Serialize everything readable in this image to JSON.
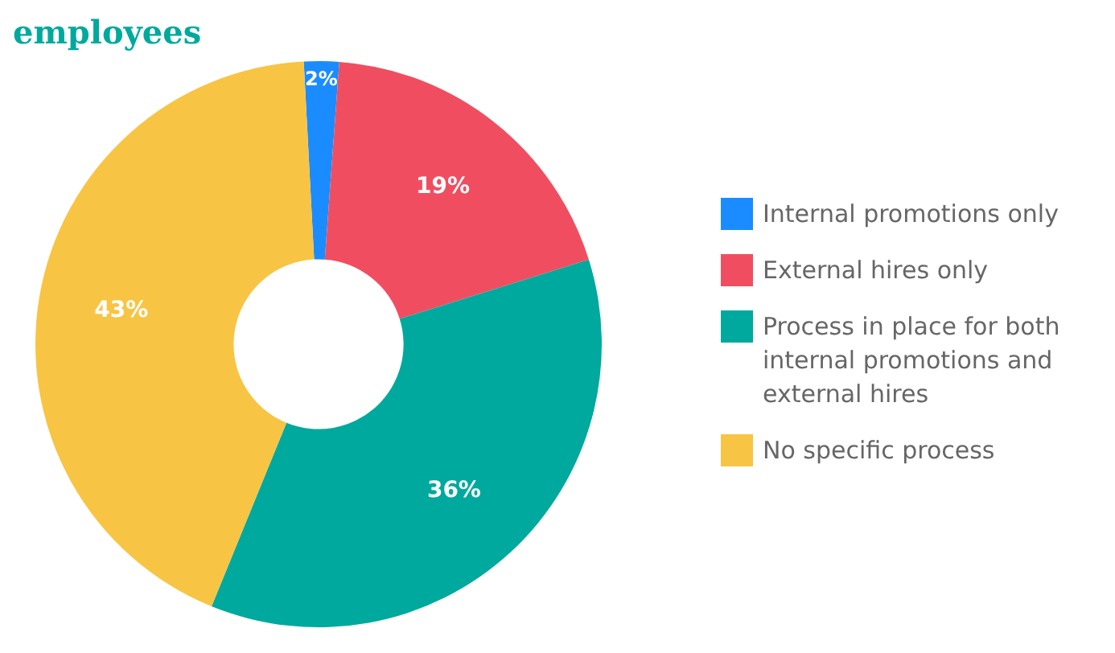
{
  "chart_data": {
    "type": "donut",
    "title": "employees",
    "categories": [
      "Internal promotions only",
      "External hires only",
      "Process in place for both internal promotions and external hires",
      "No specific process"
    ],
    "values": [
      2,
      19,
      36,
      43
    ],
    "colors": [
      "#1a8cff",
      "#f04e60",
      "#00a99d",
      "#f8c443"
    ],
    "value_labels": [
      "2%",
      "19%",
      "36%",
      "43%"
    ],
    "legend": "right"
  }
}
